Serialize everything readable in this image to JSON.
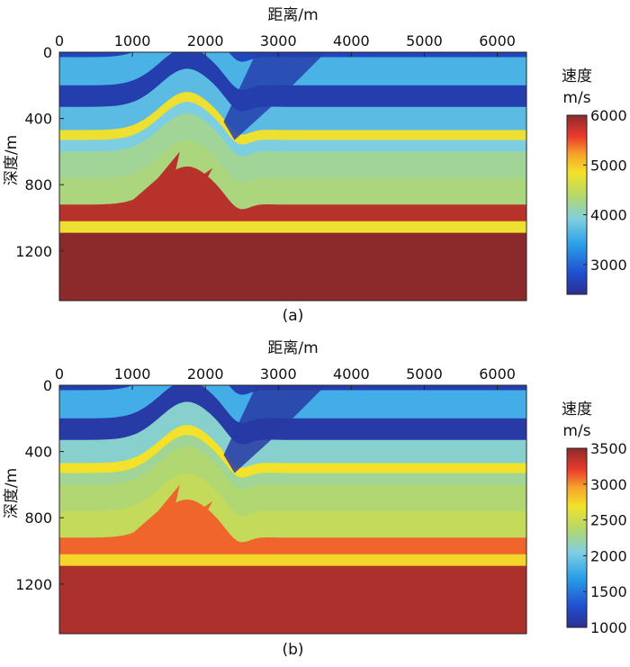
{
  "chart_data": [
    {
      "type": "heatmap",
      "caption": "(a)",
      "xlabel": "距离/m",
      "ylabel": "深度/m",
      "xlim": [
        0,
        6400
      ],
      "ylim": [
        0,
        1500
      ],
      "xticks": [
        "0",
        "1000",
        "2000",
        "3000",
        "4000",
        "5000",
        "6000"
      ],
      "xtick_values": [
        0,
        1000,
        2000,
        3000,
        4000,
        5000,
        6000
      ],
      "yticks": [
        "0",
        "400",
        "800",
        "1200"
      ],
      "ytick_values": [
        0,
        400,
        800,
        1200
      ],
      "colorbar": {
        "title_line1": "速度",
        "title_line2": "m/s",
        "range": [
          2400,
          6000
        ],
        "ticks": [
          "3000",
          "4000",
          "5000",
          "6000"
        ],
        "tick_values": [
          3000,
          4000,
          5000,
          6000
        ]
      },
      "layers": [
        {
          "top_depth": 0,
          "bottom_depth": 30,
          "velocity": 2700
        },
        {
          "top_depth": 30,
          "bottom_depth": 200,
          "velocity": 3600
        },
        {
          "top_depth": 200,
          "bottom_depth": 330,
          "velocity": 2600
        },
        {
          "top_depth": 330,
          "bottom_depth": 470,
          "velocity": 3700
        },
        {
          "top_depth": 470,
          "bottom_depth": 530,
          "velocity": 4800
        },
        {
          "top_depth": 530,
          "bottom_depth": 600,
          "velocity": 3900
        },
        {
          "top_depth": 600,
          "bottom_depth": 760,
          "velocity": 4200
        },
        {
          "top_depth": 760,
          "bottom_depth": 920,
          "velocity": 4300
        },
        {
          "top_depth": 920,
          "bottom_depth": 1020,
          "velocity": 5800
        },
        {
          "top_depth": 1020,
          "bottom_depth": 1090,
          "velocity": 4800
        },
        {
          "top_depth": 1090,
          "bottom_depth": 1500,
          "velocity": 6000
        }
      ]
    },
    {
      "type": "heatmap",
      "caption": "(b)",
      "xlabel": "距离/m",
      "ylabel": "深度/m",
      "xlim": [
        0,
        6400
      ],
      "ylim": [
        0,
        1500
      ],
      "xticks": [
        "0",
        "1000",
        "2000",
        "3000",
        "4000",
        "5000",
        "6000"
      ],
      "xtick_values": [
        0,
        1000,
        2000,
        3000,
        4000,
        5000,
        6000
      ],
      "yticks": [
        "0",
        "400",
        "800",
        "1200"
      ],
      "ytick_values": [
        0,
        400,
        800,
        1200
      ],
      "colorbar": {
        "title_line1": "速度",
        "title_line2": "m/s",
        "range": [
          1000,
          3500
        ],
        "ticks": [
          "1000",
          "1500",
          "2000",
          "2500",
          "3000",
          "3500"
        ],
        "tick_values": [
          1000,
          1500,
          2000,
          2500,
          3000,
          3500
        ]
      },
      "layers": [
        {
          "top_depth": 0,
          "bottom_depth": 30,
          "velocity": 1150
        },
        {
          "top_depth": 30,
          "bottom_depth": 200,
          "velocity": 1800
        },
        {
          "top_depth": 200,
          "bottom_depth": 330,
          "velocity": 1100
        },
        {
          "top_depth": 330,
          "bottom_depth": 470,
          "velocity": 2100
        },
        {
          "top_depth": 470,
          "bottom_depth": 530,
          "velocity": 2700
        },
        {
          "top_depth": 530,
          "bottom_depth": 600,
          "velocity": 2250
        },
        {
          "top_depth": 600,
          "bottom_depth": 760,
          "velocity": 2350
        },
        {
          "top_depth": 760,
          "bottom_depth": 920,
          "velocity": 2450
        },
        {
          "top_depth": 920,
          "bottom_depth": 1020,
          "velocity": 3100
        },
        {
          "top_depth": 1020,
          "bottom_depth": 1090,
          "velocity": 2750
        },
        {
          "top_depth": 1090,
          "bottom_depth": 1500,
          "velocity": 3400
        }
      ]
    }
  ]
}
